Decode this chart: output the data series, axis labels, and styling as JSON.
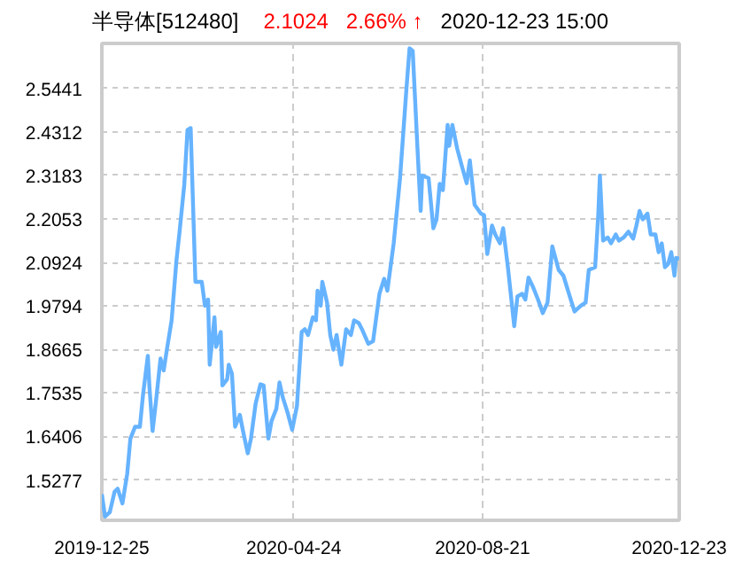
{
  "chart_data": {
    "type": "line",
    "title": "半导体[512480]",
    "annotations": [
      "2.1024",
      "2.66% ↑",
      "2020-12-23 15:00"
    ],
    "x": [
      "2019-12-25",
      "2019-12-27",
      "2019-12-30",
      "2020-01-02",
      "2020-01-04",
      "2020-01-07",
      "2020-01-10",
      "2020-01-12",
      "2020-01-15",
      "2020-01-18",
      "2020-01-20",
      "2020-01-23",
      "2020-01-24",
      "2020-01-26",
      "2020-01-28",
      "2020-01-31",
      "2020-02-02",
      "2020-02-04",
      "2020-02-07",
      "2020-02-10",
      "2020-02-12",
      "2020-02-15",
      "2020-02-17",
      "2020-02-19",
      "2020-02-22",
      "2020-02-26",
      "2020-02-28",
      "2020-03-01",
      "2020-03-02",
      "2020-03-05",
      "2020-03-06",
      "2020-03-09",
      "2020-03-10",
      "2020-03-13",
      "2020-03-14",
      "2020-03-16",
      "2020-03-18",
      "2020-03-21",
      "2020-03-23",
      "2020-03-26",
      "2020-03-28",
      "2020-03-31",
      "2020-04-03",
      "2020-04-05",
      "2020-04-08",
      "2020-04-10",
      "2020-04-13",
      "2020-04-15",
      "2020-04-17",
      "2020-04-20",
      "2020-04-23",
      "2020-04-26",
      "2020-04-29",
      "2020-05-01",
      "2020-05-03",
      "2020-05-06",
      "2020-05-08",
      "2020-05-09",
      "2020-05-11",
      "2020-05-12",
      "2020-05-15",
      "2020-05-17",
      "2020-05-19",
      "2020-05-21",
      "2020-05-24",
      "2020-05-27",
      "2020-05-30",
      "2020-06-01",
      "2020-06-04",
      "2020-06-06",
      "2020-06-10",
      "2020-06-13",
      "2020-06-17",
      "2020-06-20",
      "2020-06-22",
      "2020-06-26",
      "2020-06-30",
      "2020-07-04",
      "2020-07-06",
      "2020-07-08",
      "2020-07-11",
      "2020-07-13",
      "2020-07-14",
      "2020-07-18",
      "2020-07-21",
      "2020-07-23",
      "2020-07-25",
      "2020-07-27",
      "2020-07-30",
      "2020-07-31",
      "2020-08-02",
      "2020-08-05",
      "2020-08-08",
      "2020-08-11",
      "2020-08-13",
      "2020-08-16",
      "2020-08-20",
      "2020-08-22",
      "2020-08-24",
      "2020-08-27",
      "2020-08-29",
      "2020-09-01",
      "2020-09-03",
      "2020-09-06",
      "2020-09-10",
      "2020-09-12",
      "2020-09-15",
      "2020-09-17",
      "2020-09-19",
      "2020-09-22",
      "2020-09-25",
      "2020-09-28",
      "2020-10-01",
      "2020-10-04",
      "2020-10-08",
      "2020-10-11",
      "2020-10-15",
      "2020-10-18",
      "2020-10-22",
      "2020-10-25",
      "2020-10-27",
      "2020-10-31",
      "2020-11-02",
      "2020-11-03",
      "2020-11-05",
      "2020-11-08",
      "2020-11-10",
      "2020-11-13",
      "2020-11-15",
      "2020-11-18",
      "2020-11-21",
      "2020-11-24",
      "2020-11-26",
      "2020-11-28",
      "2020-11-30",
      "2020-12-03",
      "2020-12-05",
      "2020-12-08",
      "2020-12-10",
      "2020-12-12",
      "2020-12-14",
      "2020-12-16",
      "2020-12-18",
      "2020-12-20",
      "2020-12-21",
      "2020-12-23"
    ],
    "series": [
      {
        "color": "#66b3ff",
        "values": [
          1.491,
          1.433,
          1.444,
          1.497,
          1.505,
          1.467,
          1.544,
          1.635,
          1.666,
          1.666,
          1.75,
          1.85,
          1.77,
          1.655,
          1.727,
          1.843,
          1.812,
          1.866,
          1.942,
          2.096,
          2.172,
          2.295,
          2.436,
          2.441,
          2.042,
          2.042,
          1.98,
          1.996,
          1.827,
          1.95,
          1.873,
          1.912,
          1.773,
          1.789,
          1.827,
          1.804,
          1.666,
          1.697,
          1.655,
          1.597,
          1.635,
          1.727,
          1.776,
          1.773,
          1.635,
          1.681,
          1.712,
          1.781,
          1.743,
          1.704,
          1.658,
          1.72,
          1.912,
          1.919,
          1.904,
          1.95,
          1.942,
          2.019,
          1.98,
          2.042,
          1.988,
          1.904,
          1.866,
          1.904,
          1.827,
          1.919,
          1.904,
          1.942,
          1.935,
          1.919,
          1.881,
          1.888,
          2.011,
          2.05,
          2.019,
          2.142,
          2.311,
          2.541,
          2.648,
          2.641,
          2.388,
          2.226,
          2.318,
          2.311,
          2.181,
          2.204,
          2.296,
          2.28,
          2.449,
          2.395,
          2.449,
          2.388,
          2.342,
          2.298,
          2.357,
          2.242,
          2.219,
          2.215,
          2.114,
          2.188,
          2.165,
          2.142,
          2.181,
          2.08,
          1.927,
          2.004,
          2.011,
          1.996,
          2.053,
          2.027,
          1.996,
          1.961,
          1.988,
          2.134,
          2.073,
          2.058,
          2.004,
          1.965,
          1.98,
          1.988,
          2.073,
          2.08,
          2.219,
          2.318,
          2.149,
          2.157,
          2.142,
          2.165,
          2.149,
          2.157,
          2.172,
          2.154,
          2.188,
          2.226,
          2.204,
          2.219,
          2.165,
          2.165,
          2.119,
          2.142,
          2.08,
          2.088,
          2.119,
          2.058,
          2.104,
          2.102
        ]
      }
    ],
    "xlim": [
      "2019-12-25",
      "2020-12-23"
    ],
    "xticks": [
      "2019-12-25",
      "2020-04-24",
      "2020-08-21",
      "2020-12-23"
    ],
    "ylim": [
      1.4232,
      2.6606
    ],
    "yticks": [
      1.5277,
      1.6406,
      1.7535,
      1.8665,
      1.9794,
      2.0924,
      2.2053,
      2.3183,
      2.4312,
      2.5441
    ],
    "grid": true,
    "line_style": "solid",
    "marker": "none"
  }
}
